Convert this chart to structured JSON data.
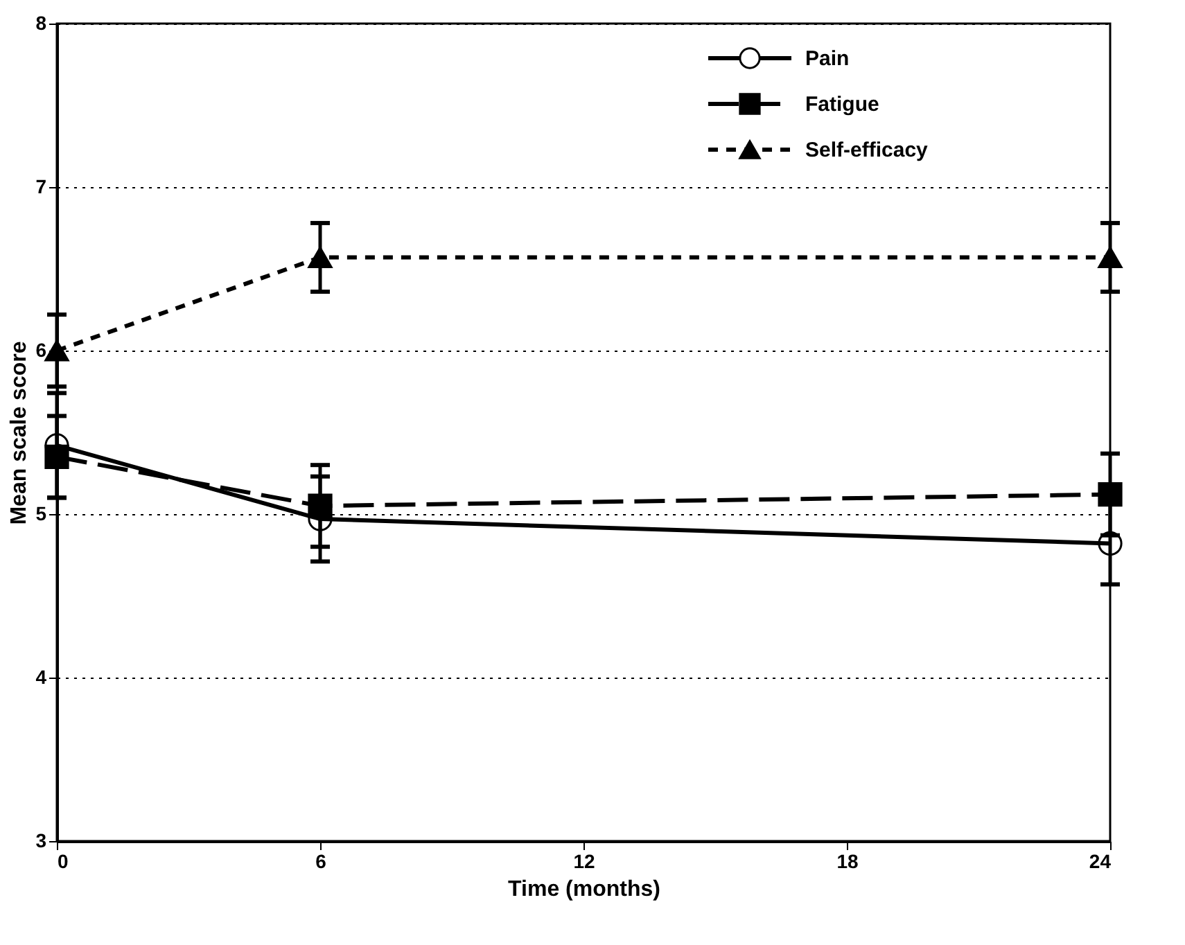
{
  "chart_data": {
    "type": "line",
    "xlabel": "Time (months)",
    "ylabel": "Mean scale score",
    "x": [
      0,
      6,
      24
    ],
    "xlim": [
      0,
      24
    ],
    "xticks": [
      0,
      6,
      12,
      18,
      24
    ],
    "ylim": [
      3,
      8
    ],
    "yticks": [
      3,
      4,
      5,
      6,
      7,
      8
    ],
    "grid": "y",
    "legend": "top right",
    "series": [
      {
        "name": "Pain",
        "color": "#000000",
        "values": [
          5.42,
          4.97,
          4.82
        ],
        "errors": [
          0.32,
          0.26,
          0.25
        ],
        "marker": "circle",
        "line_style": "solid"
      },
      {
        "name": "Fatigue",
        "color": "#000000",
        "values": [
          5.35,
          5.05,
          5.12
        ],
        "errors": [
          0.25,
          0.25,
          0.25
        ],
        "marker": "square",
        "line_style": "dashed"
      },
      {
        "name": "Self-efficacy",
        "color": "#000000",
        "values": [
          6.0,
          6.57,
          6.57
        ],
        "errors": [
          0.22,
          0.21,
          0.21
        ],
        "marker": "triangle",
        "line_style": "dotted"
      }
    ]
  }
}
